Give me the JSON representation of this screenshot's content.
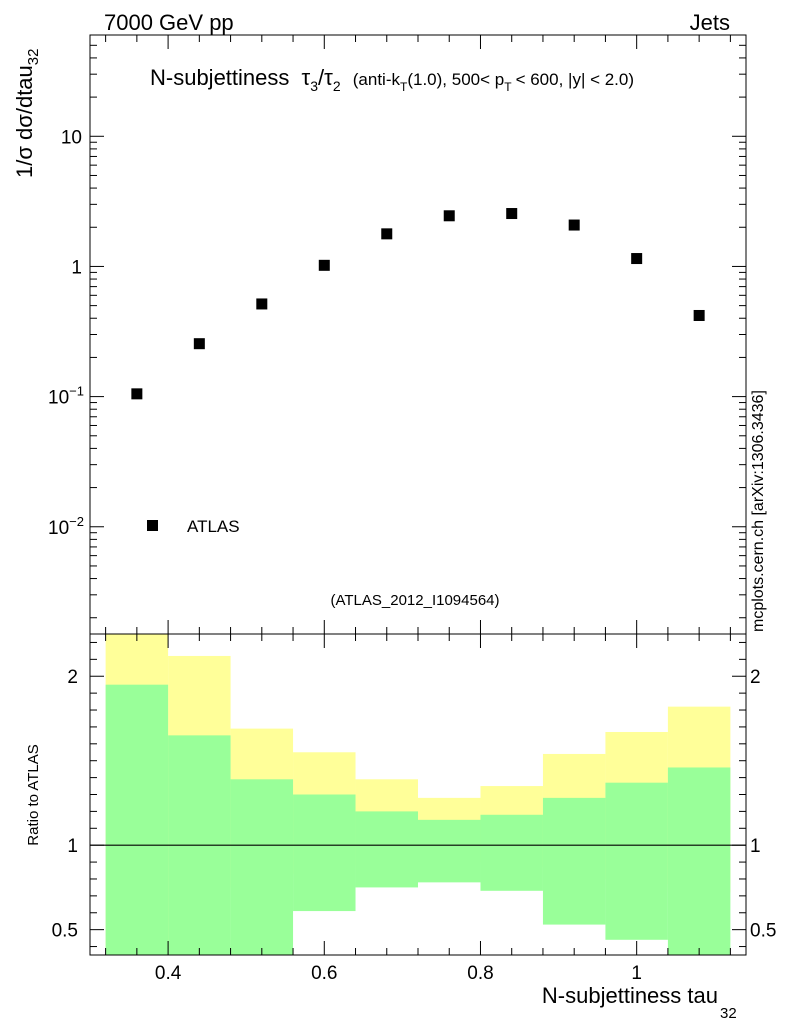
{
  "header": {
    "left": "7000 GeV pp",
    "right": "Jets"
  },
  "side_note": "mcplots.cern.ch [arXiv:1306.3436]",
  "analysis_tag": "(ATLAS_2012_I1094564)",
  "title": {
    "prefix": "N-subjettiness",
    "tau_symbol": "τ",
    "num_sub": "3",
    "den_sub": "2",
    "slash": "/",
    "detail_a": "(anti-k",
    "detail_a_sub": "T",
    "detail_b": "(1.0), 500< p",
    "detail_b_sub": "T",
    "detail_c": "< 600, |y| < 2.0)"
  },
  "axes": {
    "ylabel_main": "1/σ dσ/dtau",
    "ylabel_main_sub": "32",
    "ylabel_ratio": "Ratio to ATLAS",
    "xlabel": "N-subjettiness tau",
    "xlabel_sub": "32"
  },
  "legend": {
    "label": "ATLAS"
  },
  "colors": {
    "marker": "#000000",
    "band_inner": "#99ff99",
    "band_outer": "#ffff99"
  },
  "chart_data": {
    "type": "scatter",
    "x_range": [
      0.3,
      1.14
    ],
    "main": {
      "y_scale": "log",
      "y_range": [
        0.0015,
        60
      ],
      "major_ticks": [
        0.01,
        0.1,
        1,
        10
      ],
      "tick_labels": [
        {
          "base": "10",
          "exp": "−2"
        },
        {
          "base": "10",
          "exp": "−1"
        },
        {
          "base": "1",
          "exp": ""
        },
        {
          "base": "10",
          "exp": ""
        }
      ],
      "series": [
        {
          "name": "ATLAS",
          "x": [
            0.36,
            0.44,
            0.52,
            0.6,
            0.68,
            0.76,
            0.84,
            0.92,
            1.0,
            1.08
          ],
          "y": [
            0.105,
            0.255,
            0.515,
            1.02,
            1.78,
            2.45,
            2.55,
            2.08,
            1.15,
            0.42
          ]
        }
      ]
    },
    "ratio": {
      "y_range": [
        0.35,
        2.25
      ],
      "major_ticks": [
        0.5,
        1,
        2
      ],
      "tick_labels": [
        "0.5",
        "1",
        "2"
      ],
      "bins": [
        {
          "lo": 0.32,
          "hi": 0.4,
          "inner": [
            0.35,
            1.95
          ],
          "outer": [
            0.35,
            2.25
          ]
        },
        {
          "lo": 0.4,
          "hi": 0.48,
          "inner": [
            0.35,
            1.65
          ],
          "outer": [
            0.42,
            2.12
          ]
        },
        {
          "lo": 0.48,
          "hi": 0.56,
          "inner": [
            0.35,
            1.39
          ],
          "outer": [
            0.75,
            1.69
          ]
        },
        {
          "lo": 0.56,
          "hi": 0.64,
          "inner": [
            0.61,
            1.3
          ],
          "outer": [
            0.83,
            1.55
          ]
        },
        {
          "lo": 0.64,
          "hi": 0.72,
          "inner": [
            0.75,
            1.2
          ],
          "outer": [
            0.88,
            1.39
          ]
        },
        {
          "lo": 0.72,
          "hi": 0.8,
          "inner": [
            0.78,
            1.15
          ],
          "outer": [
            0.9,
            1.28
          ]
        },
        {
          "lo": 0.8,
          "hi": 0.88,
          "inner": [
            0.73,
            1.18
          ],
          "outer": [
            0.87,
            1.35
          ]
        },
        {
          "lo": 0.88,
          "hi": 0.96,
          "inner": [
            0.53,
            1.28
          ],
          "outer": [
            0.8,
            1.54
          ]
        },
        {
          "lo": 0.96,
          "hi": 1.04,
          "inner": [
            0.44,
            1.37
          ],
          "outer": [
            0.77,
            1.67
          ]
        },
        {
          "lo": 1.04,
          "hi": 1.12,
          "inner": [
            0.35,
            1.46
          ],
          "outer": [
            0.72,
            1.82
          ]
        }
      ]
    },
    "x_tick_labels": [
      "0.4",
      "0.6",
      "0.8",
      "1"
    ],
    "x_major_ticks": [
      0.4,
      0.6,
      0.8,
      1.0
    ]
  }
}
